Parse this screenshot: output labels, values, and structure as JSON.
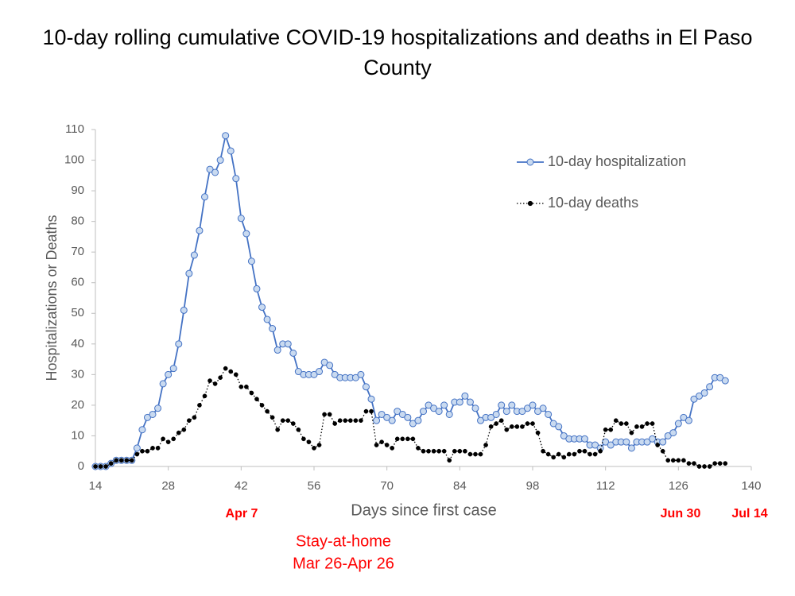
{
  "chart_data": {
    "type": "line",
    "title": "10-day rolling cumulative COVID-19 hospitalizations and deaths in El Paso County",
    "x_label": "Days since first case",
    "y_label": "Hospitalizations or Deaths",
    "x": [
      14,
      15,
      16,
      17,
      18,
      19,
      20,
      21,
      22,
      23,
      24,
      25,
      26,
      27,
      28,
      29,
      30,
      31,
      32,
      33,
      34,
      35,
      36,
      37,
      38,
      39,
      40,
      41,
      42,
      43,
      44,
      45,
      46,
      47,
      48,
      49,
      50,
      51,
      52,
      53,
      54,
      55,
      56,
      57,
      58,
      59,
      60,
      61,
      62,
      63,
      64,
      65,
      66,
      67,
      68,
      69,
      70,
      71,
      72,
      73,
      74,
      75,
      76,
      77,
      78,
      79,
      80,
      81,
      82,
      83,
      84,
      85,
      86,
      87,
      88,
      89,
      90,
      91,
      92,
      93,
      94,
      95,
      96,
      97,
      98,
      99,
      100,
      101,
      102,
      103,
      104,
      105,
      106,
      107,
      108,
      109,
      110,
      111,
      112,
      113,
      114,
      115,
      116,
      117,
      118,
      119,
      120,
      121,
      122,
      123,
      124,
      125,
      126,
      127,
      128,
      129,
      130,
      131,
      132,
      133,
      134,
      135
    ],
    "series": [
      {
        "name": "10-day hospitalization",
        "color": "#4472c4",
        "marker_fill": "#c9daf0",
        "values": [
          0,
          0,
          0,
          1,
          2,
          2,
          2,
          2,
          6,
          12,
          16,
          17,
          19,
          27,
          30,
          32,
          40,
          51,
          63,
          69,
          77,
          88,
          97,
          96,
          100,
          108,
          103,
          94,
          81,
          76,
          67,
          58,
          52,
          48,
          45,
          38,
          40,
          40,
          37,
          31,
          30,
          30,
          30,
          31,
          34,
          33,
          30,
          29,
          29,
          29,
          29,
          30,
          26,
          22,
          15,
          17,
          16,
          15,
          18,
          17,
          16,
          14,
          15,
          18,
          20,
          19,
          18,
          20,
          17,
          21,
          21,
          23,
          21,
          19,
          15,
          16,
          16,
          17,
          20,
          18,
          20,
          18,
          18,
          19,
          20,
          18,
          19,
          17,
          14,
          13,
          10,
          9,
          9,
          9,
          9,
          7,
          7,
          6,
          8,
          7,
          8,
          8,
          8,
          6,
          8,
          8,
          8,
          9,
          8,
          8,
          10,
          11,
          14,
          16,
          15,
          22,
          23,
          24,
          26,
          29,
          29,
          28
        ]
      },
      {
        "name": "10-day deaths",
        "color": "#000000",
        "values": [
          0,
          0,
          0,
          1,
          2,
          2,
          2,
          2,
          4,
          5,
          5,
          6,
          6,
          9,
          8,
          9,
          11,
          12,
          15,
          16,
          20,
          23,
          28,
          27,
          29,
          32,
          31,
          30,
          26,
          26,
          24,
          22,
          20,
          18,
          16,
          12,
          15,
          15,
          14,
          12,
          9,
          8,
          6,
          7,
          17,
          17,
          14,
          15,
          15,
          15,
          15,
          15,
          18,
          18,
          7,
          8,
          7,
          6,
          9,
          9,
          9,
          9,
          6,
          5,
          5,
          5,
          5,
          5,
          2,
          5,
          5,
          5,
          4,
          4,
          4,
          7,
          13,
          14,
          15,
          12,
          13,
          13,
          13,
          14,
          14,
          11,
          5,
          4,
          3,
          4,
          3,
          4,
          4,
          5,
          5,
          4,
          4,
          5,
          12,
          12,
          15,
          14,
          14,
          11,
          13,
          13,
          14,
          14,
          7,
          5,
          2,
          2,
          2,
          2,
          1,
          1,
          0,
          0,
          0,
          1,
          1,
          1
        ]
      }
    ],
    "xlim": [
      14,
      140
    ],
    "xticks": [
      14,
      28,
      42,
      56,
      70,
      84,
      98,
      112,
      126,
      140
    ],
    "ylim": [
      0,
      110
    ],
    "yticks": [
      0,
      10,
      20,
      30,
      40,
      50,
      60,
      70,
      80,
      90,
      100,
      110
    ],
    "grid": false,
    "legend": "upper right",
    "annotations": [
      "Apr 7",
      "Jun 30",
      "Jul 14",
      "Stay-at-home",
      "Mar 26-Apr 26"
    ]
  }
}
